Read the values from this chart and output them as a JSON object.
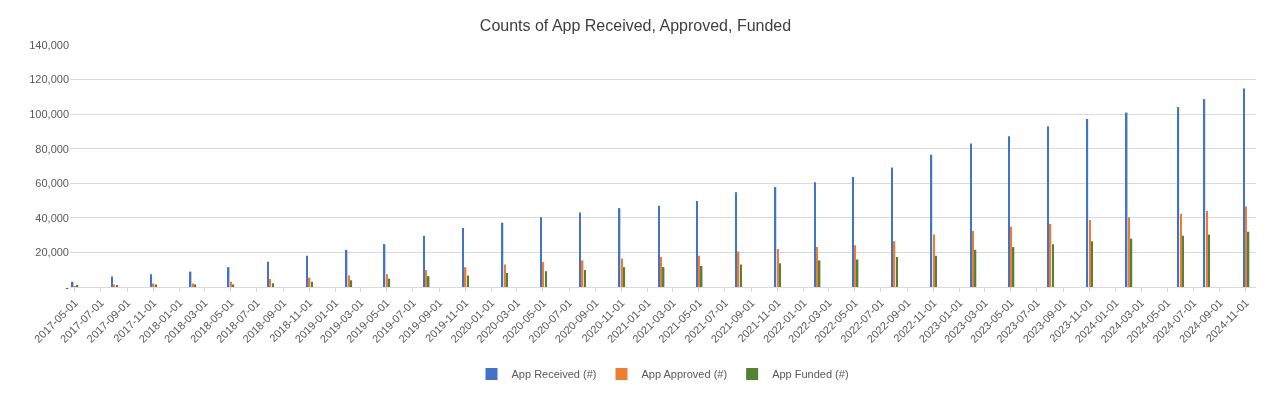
{
  "chart_data": {
    "type": "bar",
    "title": "Counts of App Received, Approved, Funded",
    "x": [
      "2017-05-01",
      "2017-08-01",
      "2017-11-01",
      "2018-02-01",
      "2018-05-01",
      "2018-08-01",
      "2018-11-01",
      "2019-02-01",
      "2019-05-01",
      "2019-08-01",
      "2019-11-01",
      "2020-02-01",
      "2020-05-01",
      "2020-08-01",
      "2020-11-01",
      "2021-02-01",
      "2021-05-01",
      "2021-08-01",
      "2021-11-01",
      "2022-02-01",
      "2022-05-01",
      "2022-08-01",
      "2022-11-01",
      "2023-02-01",
      "2023-05-01",
      "2023-08-01",
      "2023-11-01",
      "2024-02-01",
      "2024-06-01",
      "2024-08-01",
      "2024-11-01"
    ],
    "series": [
      {
        "name": "App Received (#)",
        "color": "#4472c4",
        "values": [
          3000,
          6100,
          7400,
          8900,
          11500,
          14600,
          18100,
          21500,
          24800,
          29600,
          34100,
          37200,
          40400,
          43100,
          45600,
          47000,
          49800,
          54800,
          57800,
          60600,
          63700,
          69100,
          76500,
          83000,
          87200,
          93000,
          97200,
          100900,
          104100,
          108700,
          114800
        ]
      },
      {
        "name": "App Approved (#)",
        "color": "#ed7d31",
        "values": [
          500,
          1500,
          2000,
          2000,
          3000,
          4600,
          5400,
          6700,
          7400,
          9800,
          11500,
          13000,
          14400,
          15400,
          16500,
          17400,
          18100,
          20600,
          22000,
          23100,
          24100,
          26500,
          30400,
          32400,
          34800,
          36500,
          38700,
          40400,
          42400,
          43900,
          46500
        ]
      },
      {
        "name": "App Funded (#)",
        "color": "#548235",
        "values": [
          700,
          700,
          1500,
          1500,
          1500,
          2200,
          3100,
          3900,
          4800,
          6300,
          6700,
          8100,
          9100,
          9800,
          11500,
          11500,
          12200,
          13000,
          13700,
          15400,
          15900,
          17400,
          18100,
          21500,
          23100,
          24800,
          26500,
          28000,
          29600,
          30400,
          32000
        ]
      }
    ],
    "xlim": [
      "2017-04-20",
      "2024-11-25"
    ],
    "xticks": [
      "2017-05-01",
      "2017-07-01",
      "2017-09-01",
      "2017-11-01",
      "2018-01-01",
      "2018-03-01",
      "2018-05-01",
      "2018-07-01",
      "2018-09-01",
      "2018-11-01",
      "2019-01-01",
      "2019-03-01",
      "2019-05-01",
      "2019-07-01",
      "2019-09-01",
      "2019-11-01",
      "2020-01-01",
      "2020-03-01",
      "2020-05-01",
      "2020-07-01",
      "2020-09-01",
      "2020-11-01",
      "2021-01-01",
      "2021-03-01",
      "2021-05-01",
      "2021-07-01",
      "2021-09-01",
      "2021-11-01",
      "2022-01-01",
      "2022-03-01",
      "2022-05-01",
      "2022-07-01",
      "2022-09-01",
      "2022-11-01",
      "2023-01-01",
      "2023-03-01",
      "2023-05-01",
      "2023-07-01",
      "2023-09-01",
      "2023-11-01",
      "2024-01-01",
      "2024-03-01",
      "2024-05-01",
      "2024-07-01",
      "2024-09-01",
      "2024-11-01"
    ],
    "ylim": [
      0,
      140000
    ],
    "yticks": [
      {
        "value": 0,
        "label": "-"
      },
      {
        "value": 20000,
        "label": "20,000"
      },
      {
        "value": 40000,
        "label": "40,000"
      },
      {
        "value": 60000,
        "label": "60,000"
      },
      {
        "value": 80000,
        "label": "80,000"
      },
      {
        "value": 100000,
        "label": "100,000"
      },
      {
        "value": 120000,
        "label": "120,000"
      },
      {
        "value": 140000,
        "label": "140,000"
      }
    ],
    "grid": "y",
    "legend": "bottom"
  }
}
